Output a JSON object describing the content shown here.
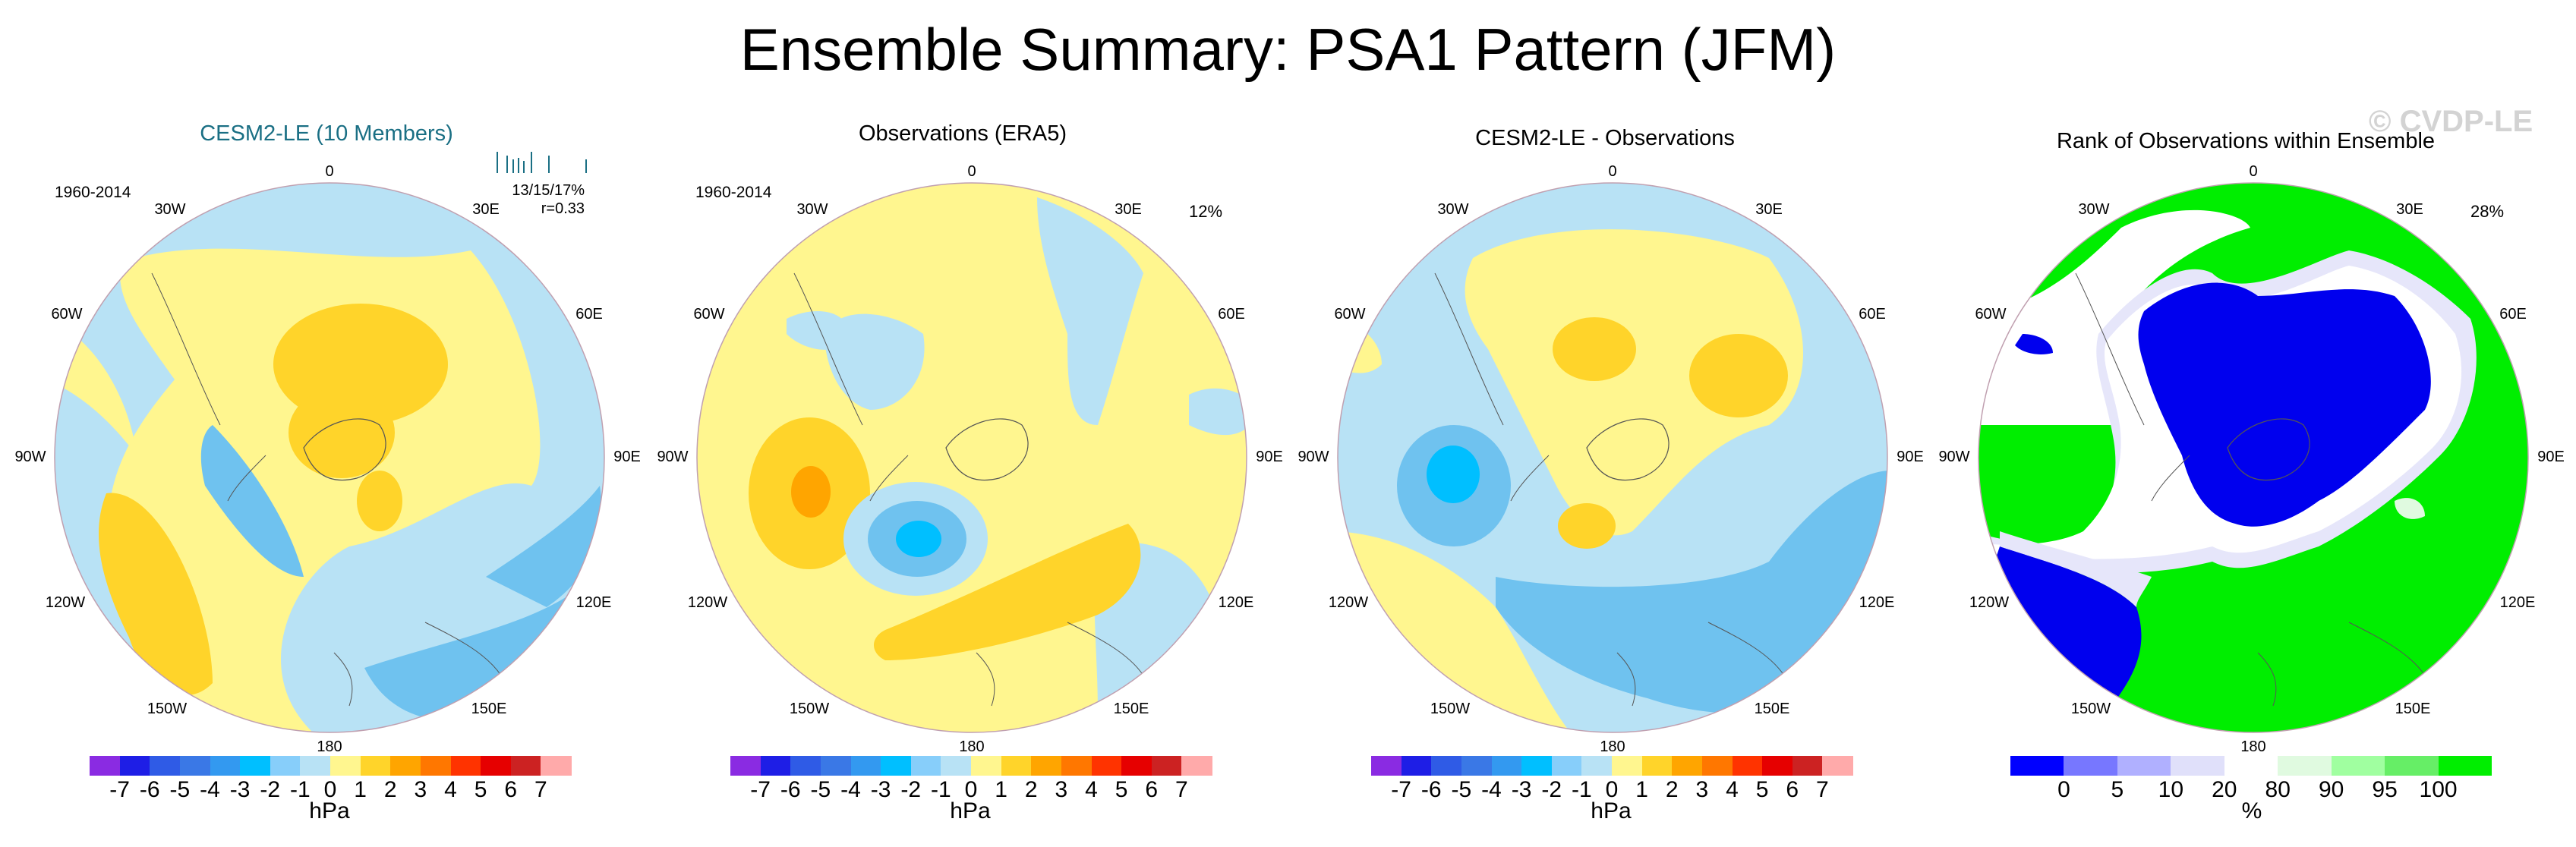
{
  "main_title": "Ensemble Summary: PSA1 Pattern (JFM)",
  "watermark": "© CVDP-LE",
  "chart_data": [
    {
      "type": "heatmap",
      "title": "CESM2-LE (10 Members)",
      "title_color": "#1a6f84",
      "projection": "south-polar-stereographic",
      "period": "1960-2014",
      "stats": "13/15/17%",
      "correlation": "r=0.33",
      "meridian_labels": [
        "0",
        "30E",
        "60E",
        "90E",
        "120E",
        "150E",
        "180",
        "150W",
        "120W",
        "90W",
        "60W",
        "30W"
      ],
      "colorbar": {
        "units": "hPa",
        "tick_labels": [
          "-7",
          "-6",
          "-5",
          "-4",
          "-3",
          "-2",
          "-1",
          "0",
          "1",
          "2",
          "3",
          "4",
          "5",
          "6",
          "7"
        ],
        "colors": [
          "#8a2be2",
          "#1e1ee6",
          "#2f5be6",
          "#3a78e6",
          "#3399f0",
          "#00bfff",
          "#87cefa",
          "#b8e2f5",
          "#fff68f",
          "#ffd42a",
          "#ffa500",
          "#ff7700",
          "#ff3300",
          "#e60000",
          "#cc2222",
          "#ffaaaa"
        ]
      }
    },
    {
      "type": "heatmap",
      "title": "Observations (ERA5)",
      "projection": "south-polar-stereographic",
      "period": "1960-2014",
      "percent": "12%",
      "meridian_labels": [
        "0",
        "30E",
        "60E",
        "90E",
        "120E",
        "150E",
        "180",
        "150W",
        "120W",
        "90W",
        "60W",
        "30W"
      ],
      "colorbar": {
        "units": "hPa",
        "tick_labels": [
          "-7",
          "-6",
          "-5",
          "-4",
          "-3",
          "-2",
          "-1",
          "0",
          "1",
          "2",
          "3",
          "4",
          "5",
          "6",
          "7"
        ],
        "colors": [
          "#8a2be2",
          "#1e1ee6",
          "#2f5be6",
          "#3a78e6",
          "#3399f0",
          "#00bfff",
          "#87cefa",
          "#b8e2f5",
          "#fff68f",
          "#ffd42a",
          "#ffa500",
          "#ff7700",
          "#ff3300",
          "#e60000",
          "#cc2222",
          "#ffaaaa"
        ]
      }
    },
    {
      "type": "heatmap",
      "title": "CESM2-LE - Observations",
      "projection": "south-polar-stereographic",
      "meridian_labels": [
        "0",
        "30E",
        "60E",
        "90E",
        "120E",
        "150E",
        "180",
        "150W",
        "120W",
        "90W",
        "60W",
        "30W"
      ],
      "colorbar": {
        "units": "hPa",
        "tick_labels": [
          "-7",
          "-6",
          "-5",
          "-4",
          "-3",
          "-2",
          "-1",
          "0",
          "1",
          "2",
          "3",
          "4",
          "5",
          "6",
          "7"
        ],
        "colors": [
          "#8a2be2",
          "#1e1ee6",
          "#2f5be6",
          "#3a78e6",
          "#3399f0",
          "#00bfff",
          "#87cefa",
          "#b8e2f5",
          "#fff68f",
          "#ffd42a",
          "#ffa500",
          "#ff7700",
          "#ff3300",
          "#e60000",
          "#cc2222",
          "#ffaaaa"
        ]
      }
    },
    {
      "type": "heatmap",
      "title": "Rank of Observations within Ensemble",
      "projection": "south-polar-stereographic",
      "percent": "28%",
      "meridian_labels": [
        "0",
        "30E",
        "60E",
        "90E",
        "120E",
        "150E",
        "180",
        "150W",
        "120W",
        "90W",
        "60W",
        "30W"
      ],
      "colorbar": {
        "units": "%",
        "tick_labels": [
          "0",
          "5",
          "10",
          "20",
          "80",
          "90",
          "95",
          "100"
        ],
        "colors": [
          "#0000ff",
          "#7777ff",
          "#b0b0ff",
          "#e0e0fa",
          "#ffffff",
          "#e0fae0",
          "#a0ffa0",
          "#66ee66",
          "#00ee00"
        ]
      }
    }
  ]
}
